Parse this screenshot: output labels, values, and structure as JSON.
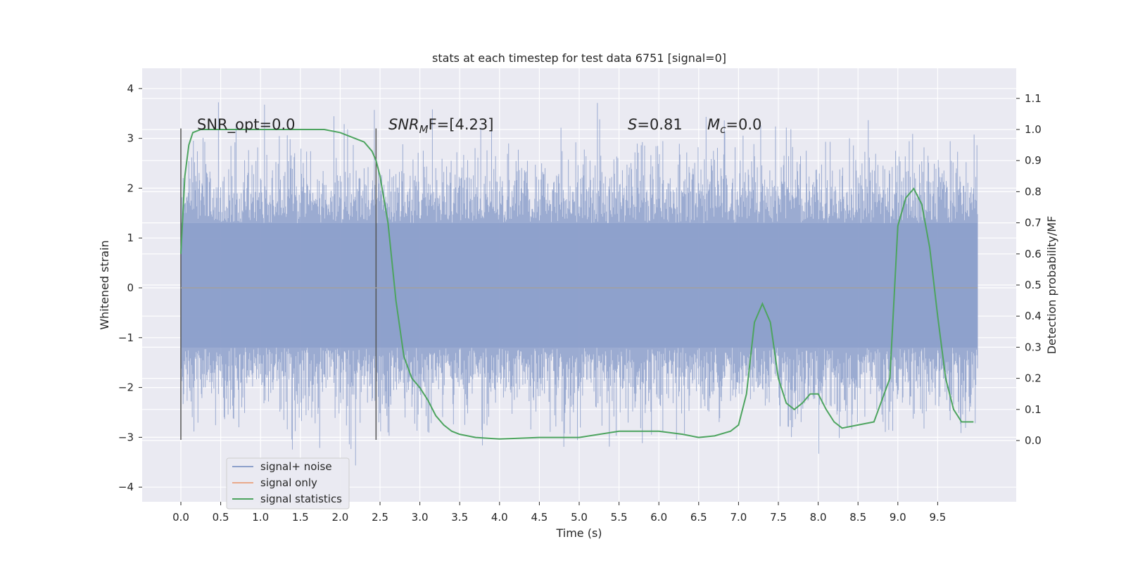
{
  "chart_data": {
    "type": "line",
    "title": "stats at each timestep for test data 6751 [signal=0]",
    "xlabel": "Time (s)",
    "ylabel_left": "Whitened strain",
    "ylabel_right": "Detection probability/MF",
    "xlim": [
      -0.5,
      10.5
    ],
    "ylim_left": [
      -4.4,
      4.4
    ],
    "ylim_right": [
      -0.2,
      1.19
    ],
    "x_ticks": [
      "0.0",
      "0.5",
      "1.0",
      "1.5",
      "2.0",
      "2.5",
      "3.0",
      "3.5",
      "4.0",
      "4.5",
      "5.0",
      "5.5",
      "6.0",
      "6.5",
      "7.0",
      "7.5",
      "8.0",
      "8.5",
      "9.0",
      "9.5"
    ],
    "y_ticks_left": [
      "4",
      "3",
      "2",
      "1",
      "0",
      "−1",
      "−2",
      "−3",
      "−4"
    ],
    "y_ticks_right": [
      "1.1",
      "1.0",
      "0.9",
      "0.8",
      "0.7",
      "0.6",
      "0.5",
      "0.4",
      "0.3",
      "0.2",
      "0.1",
      "0.0"
    ],
    "grid": true,
    "legend_position": "lower-left",
    "series": [
      {
        "name": "signal+ noise",
        "color": "#8da0cb",
        "axis": "left",
        "kind": "noise",
        "x_range": [
          0.0,
          10.0
        ],
        "core_band": [
          -1.2,
          1.3
        ]
      },
      {
        "name": "signal only",
        "color": "#e9a98a",
        "axis": "left",
        "x": [
          0.0,
          10.0
        ],
        "values": [
          0.0,
          0.0
        ]
      },
      {
        "name": "signal statistics",
        "color": "#4da45f",
        "axis": "right",
        "x": [
          0.0,
          0.05,
          0.1,
          0.15,
          0.25,
          0.5,
          1.0,
          1.5,
          1.8,
          2.0,
          2.2,
          2.3,
          2.4,
          2.45,
          2.5,
          2.6,
          2.7,
          2.8,
          2.9,
          3.0,
          3.1,
          3.2,
          3.3,
          3.4,
          3.5,
          3.7,
          4.0,
          4.5,
          5.0,
          5.5,
          6.0,
          6.3,
          6.5,
          6.7,
          6.9,
          7.0,
          7.1,
          7.2,
          7.3,
          7.4,
          7.5,
          7.6,
          7.7,
          7.8,
          7.9,
          8.0,
          8.1,
          8.2,
          8.3,
          8.5,
          8.7,
          8.9,
          9.0,
          9.1,
          9.2,
          9.3,
          9.4,
          9.5,
          9.6,
          9.7,
          9.8,
          9.9,
          9.95
        ],
        "values": [
          0.6,
          0.85,
          0.95,
          0.99,
          1.0,
          1.0,
          1.0,
          1.0,
          1.0,
          0.99,
          0.97,
          0.96,
          0.93,
          0.9,
          0.85,
          0.7,
          0.45,
          0.27,
          0.2,
          0.17,
          0.13,
          0.08,
          0.05,
          0.03,
          0.02,
          0.01,
          0.005,
          0.01,
          0.01,
          0.03,
          0.03,
          0.02,
          0.01,
          0.015,
          0.03,
          0.05,
          0.15,
          0.38,
          0.44,
          0.38,
          0.2,
          0.12,
          0.1,
          0.12,
          0.15,
          0.15,
          0.1,
          0.06,
          0.04,
          0.05,
          0.06,
          0.2,
          0.69,
          0.78,
          0.81,
          0.76,
          0.62,
          0.4,
          0.2,
          0.1,
          0.06,
          0.06,
          0.06
        ]
      }
    ],
    "vlines": [
      0.0,
      2.45
    ],
    "annotations": {
      "snr_opt": "SNR_opt=0.0",
      "snr_mf_name": "SNR",
      "snr_mf_sub": "M",
      "snr_mf_rest": "F=[4.23]",
      "s_name": "S",
      "s_value": "=0.81",
      "mc_name": "M",
      "mc_sub": "c",
      "mc_value": "=0.0"
    }
  }
}
